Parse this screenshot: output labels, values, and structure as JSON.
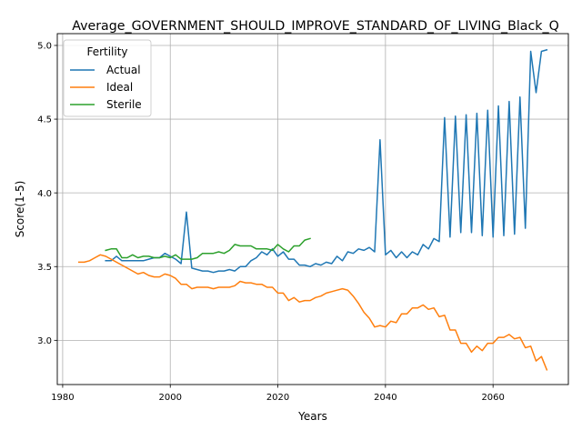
{
  "chart_data": {
    "type": "line",
    "title": "Average_GOVERNMENT_SHOULD_IMPROVE_STANDARD_OF_LIVING_Black_Q",
    "xlabel": "Years",
    "ylabel": "Score(1-5)",
    "xlim": [
      1979,
      2074
    ],
    "ylim": [
      2.7,
      5.08
    ],
    "xticks": [
      1980,
      2000,
      2020,
      2040,
      2060
    ],
    "yticks": [
      3.0,
      3.5,
      4.0,
      4.5,
      5.0
    ],
    "xtick_labels": [
      "1980",
      "2000",
      "2020",
      "2040",
      "2060"
    ],
    "ytick_labels": [
      "3.0",
      "3.5",
      "4.0",
      "4.5",
      "5.0"
    ],
    "grid": true,
    "legend": {
      "title": "Fertility",
      "placement": "top-left"
    },
    "series": [
      {
        "name": "Actual",
        "color": "#1f77b4",
        "x": [
          1988,
          1989,
          1990,
          1991,
          1992,
          1993,
          1994,
          1995,
          1996,
          1997,
          1998,
          1999,
          2000,
          2001,
          2002,
          2003,
          2004,
          2005,
          2006,
          2007,
          2008,
          2009,
          2010,
          2011,
          2012,
          2013,
          2014,
          2015,
          2016,
          2017,
          2018,
          2019,
          2020,
          2021,
          2022,
          2023,
          2024,
          2025,
          2026,
          2027,
          2028,
          2029,
          2030,
          2031,
          2032,
          2033,
          2034,
          2035,
          2036,
          2037,
          2038,
          2039,
          2040,
          2041,
          2042,
          2043,
          2044,
          2045,
          2046,
          2047,
          2048,
          2049,
          2050,
          2051,
          2052,
          2053,
          2054,
          2055,
          2056,
          2057,
          2058,
          2059,
          2060,
          2061,
          2062,
          2063,
          2064,
          2065,
          2066,
          2067,
          2068,
          2069,
          2070
        ],
        "y": [
          3.54,
          3.54,
          3.57,
          3.54,
          3.54,
          3.54,
          3.54,
          3.54,
          3.55,
          3.56,
          3.56,
          3.59,
          3.57,
          3.55,
          3.52,
          3.87,
          3.49,
          3.48,
          3.47,
          3.47,
          3.46,
          3.47,
          3.47,
          3.48,
          3.47,
          3.5,
          3.5,
          3.54,
          3.56,
          3.6,
          3.58,
          3.62,
          3.57,
          3.6,
          3.55,
          3.55,
          3.51,
          3.51,
          3.5,
          3.52,
          3.51,
          3.53,
          3.52,
          3.57,
          3.54,
          3.6,
          3.59,
          3.62,
          3.61,
          3.63,
          3.6,
          4.36,
          3.58,
          3.61,
          3.56,
          3.6,
          3.56,
          3.6,
          3.58,
          3.65,
          3.62,
          3.69,
          3.67,
          4.51,
          3.7,
          4.52,
          3.73,
          4.53,
          3.73,
          4.54,
          3.71,
          4.56,
          3.7,
          4.59,
          3.71,
          4.62,
          3.72,
          4.65,
          3.76,
          4.96,
          4.68,
          4.96,
          4.97
        ]
      },
      {
        "name": "Ideal",
        "color": "#ff7f0e",
        "x": [
          1983,
          1984,
          1985,
          1986,
          1987,
          1988,
          1989,
          1990,
          1991,
          1992,
          1993,
          1994,
          1995,
          1996,
          1997,
          1998,
          1999,
          2000,
          2001,
          2002,
          2003,
          2004,
          2005,
          2006,
          2007,
          2008,
          2009,
          2010,
          2011,
          2012,
          2013,
          2014,
          2015,
          2016,
          2017,
          2018,
          2019,
          2020,
          2021,
          2022,
          2023,
          2024,
          2025,
          2026,
          2027,
          2028,
          2029,
          2030,
          2031,
          2032,
          2033,
          2034,
          2035,
          2036,
          2037,
          2038,
          2039,
          2040,
          2041,
          2042,
          2043,
          2044,
          2045,
          2046,
          2047,
          2048,
          2049,
          2050,
          2051,
          2052,
          2053,
          2054,
          2055,
          2056,
          2057,
          2058,
          2059,
          2060,
          2061,
          2062,
          2063,
          2064,
          2065,
          2066,
          2067,
          2068,
          2069,
          2070
        ],
        "y": [
          3.53,
          3.53,
          3.54,
          3.56,
          3.58,
          3.57,
          3.55,
          3.53,
          3.51,
          3.49,
          3.47,
          3.45,
          3.46,
          3.44,
          3.43,
          3.43,
          3.45,
          3.44,
          3.42,
          3.38,
          3.38,
          3.35,
          3.36,
          3.36,
          3.36,
          3.35,
          3.36,
          3.36,
          3.36,
          3.37,
          3.4,
          3.39,
          3.39,
          3.38,
          3.38,
          3.36,
          3.36,
          3.32,
          3.32,
          3.27,
          3.29,
          3.26,
          3.27,
          3.27,
          3.29,
          3.3,
          3.32,
          3.33,
          3.34,
          3.35,
          3.34,
          3.3,
          3.25,
          3.19,
          3.15,
          3.09,
          3.1,
          3.09,
          3.13,
          3.12,
          3.18,
          3.18,
          3.22,
          3.22,
          3.24,
          3.21,
          3.22,
          3.16,
          3.17,
          3.07,
          3.07,
          2.98,
          2.98,
          2.92,
          2.96,
          2.93,
          2.98,
          2.98,
          3.02,
          3.02,
          3.04,
          3.01,
          3.02,
          2.95,
          2.96,
          2.86,
          2.89,
          2.8
        ]
      },
      {
        "name": "Sterile",
        "color": "#2ca02c",
        "x": [
          1988,
          1989,
          1990,
          1991,
          1992,
          1993,
          1994,
          1995,
          1996,
          1997,
          1998,
          1999,
          2000,
          2001,
          2002,
          2003,
          2004,
          2005,
          2006,
          2007,
          2008,
          2009,
          2010,
          2011,
          2012,
          2013,
          2014,
          2015,
          2016,
          2017,
          2018,
          2019,
          2020,
          2021,
          2022,
          2023,
          2024,
          2025,
          2026
        ],
        "y": [
          3.61,
          3.62,
          3.62,
          3.56,
          3.56,
          3.58,
          3.56,
          3.57,
          3.57,
          3.56,
          3.56,
          3.57,
          3.56,
          3.58,
          3.55,
          3.55,
          3.55,
          3.56,
          3.59,
          3.59,
          3.59,
          3.6,
          3.59,
          3.61,
          3.65,
          3.64,
          3.64,
          3.64,
          3.62,
          3.62,
          3.62,
          3.61,
          3.65,
          3.62,
          3.6,
          3.64,
          3.64,
          3.68,
          3.69
        ]
      }
    ]
  }
}
